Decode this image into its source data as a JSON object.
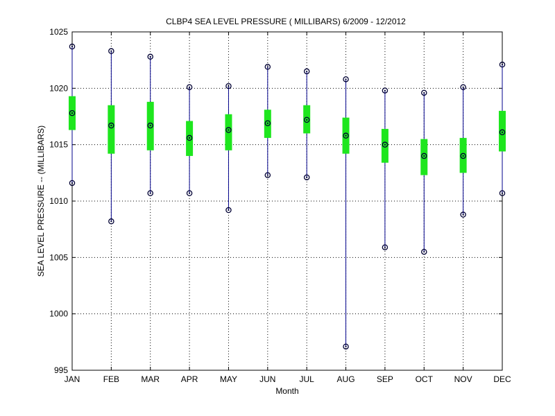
{
  "chart_data": {
    "type": "box",
    "title": "CLBP4  SEA LEVEL PRESSURE ( MILLIBARS) 6/2009 - 12/2012",
    "xlabel": "Month",
    "ylabel": "SEA LEVEL PRESSURE -- (MILLIBARS)",
    "ylim": [
      995,
      1025
    ],
    "yticks": [
      995,
      1000,
      1005,
      1010,
      1015,
      1020,
      1025
    ],
    "grid": true,
    "categories": [
      "JAN",
      "FEB",
      "MAR",
      "APR",
      "MAY",
      "JUN",
      "JUL",
      "AUG",
      "SEP",
      "OCT",
      "NOV",
      "DEC"
    ],
    "max": [
      1023.7,
      1023.3,
      1022.8,
      1020.1,
      1020.2,
      1021.9,
      1021.5,
      1020.8,
      1019.8,
      1019.6,
      1020.1,
      1022.1
    ],
    "upper": [
      1019.3,
      1018.5,
      1018.8,
      1017.1,
      1017.7,
      1018.1,
      1018.5,
      1017.4,
      1016.4,
      1015.5,
      1015.6,
      1018.0
    ],
    "median": [
      1017.8,
      1016.7,
      1016.7,
      1015.6,
      1016.3,
      1016.9,
      1017.2,
      1015.8,
      1015.0,
      1014.0,
      1014.0,
      1016.1
    ],
    "lower": [
      1016.3,
      1014.2,
      1014.5,
      1014.0,
      1014.5,
      1015.6,
      1016.0,
      1014.2,
      1013.4,
      1012.3,
      1012.5,
      1014.4
    ],
    "min": [
      1011.6,
      1008.2,
      1010.7,
      1010.7,
      1009.2,
      1012.3,
      1012.1,
      997.1,
      1005.9,
      1005.5,
      1008.8,
      1010.7
    ],
    "colors": {
      "whisker": "#00008b",
      "box": "#1ee61e",
      "marker": "#000033"
    }
  }
}
